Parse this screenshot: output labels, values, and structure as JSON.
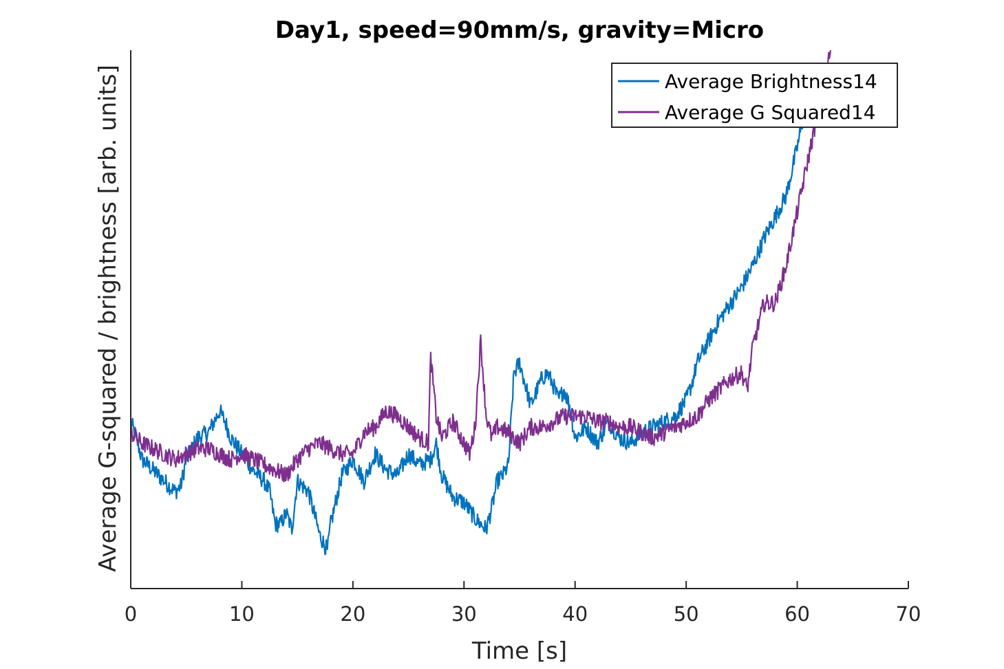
{
  "chart_data": {
    "type": "line",
    "title": "Day1, speed=90mm/s, gravity=Micro",
    "xlabel": "Time [s]",
    "ylabel": "Average G-squared / brightness [arb. units]",
    "xlim": [
      0,
      70
    ],
    "ylim": [
      0,
      100
    ],
    "xticks": [
      0,
      10,
      20,
      30,
      40,
      50,
      60,
      70
    ],
    "y_tick_labels_shown": false,
    "grid": false,
    "legend_position": "top-right",
    "series": [
      {
        "name": "Average Brightness14",
        "color": "#0072BD",
        "x": [
          0,
          0.5,
          1,
          2,
          3,
          4,
          4.5,
          5,
          6,
          7,
          8,
          8.5,
          9,
          10,
          11,
          12,
          12.5,
          13,
          13.5,
          14,
          14.5,
          15,
          16,
          17,
          17.7,
          18,
          19,
          20,
          21,
          22,
          23,
          24,
          25,
          26,
          27,
          27.5,
          28,
          29,
          30,
          31,
          32,
          32.5,
          33,
          33.5,
          34,
          34.5,
          35,
          35.5,
          36,
          37,
          37.5,
          38,
          38.5,
          39,
          39.5,
          40,
          41,
          42,
          43,
          44,
          45,
          46,
          47,
          48,
          49,
          50,
          50.5,
          51,
          52,
          53,
          54,
          55,
          56,
          57,
          58,
          59,
          60,
          60.5,
          61
        ],
        "values": [
          31,
          28,
          24,
          22,
          20,
          18,
          19,
          24,
          28,
          29,
          33,
          31,
          28,
          25,
          22,
          20,
          18,
          12,
          12,
          14,
          11,
          20,
          18,
          10,
          7,
          12,
          21,
          24,
          20,
          25,
          22,
          21,
          25,
          23,
          24,
          27,
          21,
          17,
          16,
          13,
          11,
          15,
          20,
          21,
          23,
          40,
          42,
          38,
          34,
          39,
          40,
          38,
          35,
          37,
          34,
          28,
          30,
          27,
          31,
          28,
          27,
          29,
          30,
          31,
          32,
          35,
          38,
          42,
          46,
          50,
          53,
          56,
          60,
          65,
          69,
          73,
          82,
          87,
          91
        ]
      },
      {
        "name": "Average G Squared14",
        "color": "#7E2F8E",
        "x": [
          0,
          1,
          2,
          3,
          4,
          5,
          6,
          7,
          8,
          9,
          10,
          11,
          12,
          13,
          14,
          15,
          16,
          17,
          18,
          19,
          20,
          21,
          22,
          23,
          24,
          25,
          26,
          26.8,
          27,
          27.5,
          28,
          29,
          30,
          30.5,
          31,
          31.5,
          32,
          32.5,
          33,
          34,
          35,
          36,
          37,
          38,
          39,
          40,
          41,
          42,
          43,
          44,
          45,
          46,
          47,
          48,
          49,
          50,
          51,
          52,
          53,
          54,
          55,
          55.5,
          56,
          57,
          58,
          59,
          60,
          61,
          62,
          63
        ],
        "values": [
          29,
          27,
          26,
          25,
          24,
          25,
          26,
          26,
          25,
          24,
          25,
          24,
          23,
          22,
          21,
          24,
          26,
          27,
          26,
          25,
          25,
          29,
          30,
          33,
          32,
          30,
          28,
          27,
          43,
          32,
          28,
          31,
          27,
          25,
          30,
          46,
          32,
          28,
          30,
          29,
          27,
          30,
          30,
          31,
          32,
          32,
          32,
          31,
          31,
          30,
          30,
          29,
          28,
          29,
          30,
          31,
          32,
          35,
          37,
          39,
          40,
          37,
          45,
          53,
          53,
          60,
          70,
          80,
          90,
          100
        ]
      }
    ]
  }
}
